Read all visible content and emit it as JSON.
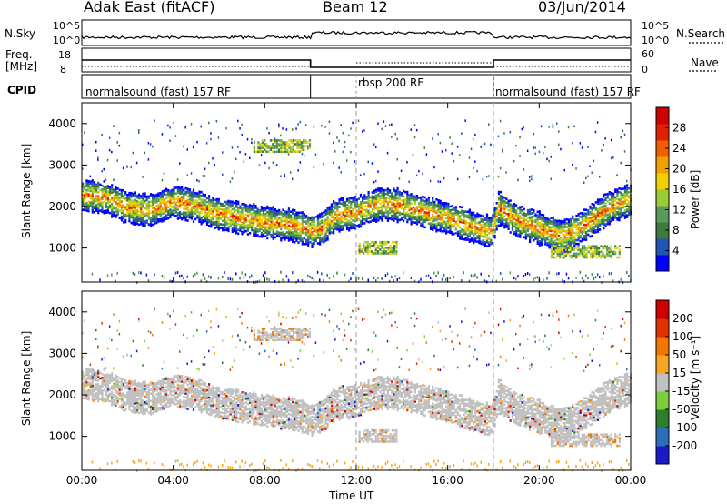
{
  "header": {
    "station": "Adak East (fitACF)",
    "beam": "Beam 12",
    "date": "03/Jun/2014"
  },
  "top_panels": {
    "nsky_label": "N.Sky",
    "nsky_ticks": [
      "10^5",
      "10^0"
    ],
    "nsearch_label": "N.Search",
    "freq_label_line1": "Freq.",
    "freq_label_line2": "[MHz]",
    "freq_ticks": [
      "18",
      "8"
    ],
    "nave_label": "Nave",
    "nave_ticks": [
      "60",
      "0"
    ],
    "cpid_label": "CPID",
    "cpid_segments": [
      "normalsound (fast) 157 RF",
      "rbsp 200 RF",
      "normalsound (fast) 157 RF"
    ]
  },
  "colors": {
    "power_scale": [
      "#0000ff",
      "#2155b8",
      "#3d7a3d",
      "#5a9a5a",
      "#9acd32",
      "#f2d000",
      "#f2a000",
      "#f06000",
      "#e02000",
      "#d00000"
    ],
    "velocity_scale": [
      "#1a1ac8",
      "#2c6fb8",
      "#2f7d2f",
      "#7ccf3a",
      "#c0c0c0",
      "#f5a623",
      "#f07800",
      "#e03000",
      "#d00000"
    ]
  },
  "chart_data": [
    {
      "type": "heatmap",
      "name": "power",
      "ylabel": "Slant Range [km]",
      "yticks": [
        "4000",
        "3000",
        "2000",
        "1000"
      ],
      "ylim": [
        180,
        4500
      ],
      "xlim": [
        "00:00",
        "24:00"
      ],
      "colorbar_label": "Power [dB]",
      "colorbar_ticks": [
        "28",
        "24",
        "20",
        "16",
        "12",
        "8",
        "4"
      ],
      "band_center_km": [
        [
          0,
          2300
        ],
        [
          1,
          2250
        ],
        [
          2,
          2000
        ],
        [
          3,
          1950
        ],
        [
          4,
          2150
        ],
        [
          5,
          2050
        ],
        [
          6,
          1850
        ],
        [
          7,
          1750
        ],
        [
          8,
          1650
        ],
        [
          9,
          1600
        ],
        [
          10,
          1450
        ],
        [
          10.5,
          1500
        ],
        [
          11,
          1800
        ],
        [
          12,
          1900
        ],
        [
          13,
          2100
        ],
        [
          14,
          2050
        ],
        [
          15,
          1900
        ],
        [
          16,
          1750
        ],
        [
          17,
          1550
        ],
        [
          17.9,
          1400
        ],
        [
          18.2,
          2000
        ],
        [
          19,
          1700
        ],
        [
          20,
          1500
        ],
        [
          21,
          1300
        ],
        [
          22,
          1600
        ],
        [
          23,
          2000
        ],
        [
          24,
          2200
        ]
      ],
      "patches_km": [
        [
          12.1,
          13.8,
          1050
        ],
        [
          20.5,
          23.5,
          950
        ],
        [
          7.5,
          10.0,
          3500
        ]
      ]
    },
    {
      "type": "heatmap",
      "name": "velocity",
      "ylabel": "Slant Range [km]",
      "yticks": [
        "4000",
        "3000",
        "2000",
        "1000"
      ],
      "ylim": [
        180,
        4500
      ],
      "xlim": [
        "00:00",
        "24:00"
      ],
      "xticks": [
        "00:00",
        "04:00",
        "08:00",
        "12:00",
        "16:00",
        "20:00",
        "00:00"
      ],
      "xlabel": "Time UT",
      "colorbar_label": "Velocity [m s⁻¹]",
      "colorbar_ticks": [
        "200",
        "100",
        "50",
        "15",
        "-15",
        "-50",
        "-100",
        "-200"
      ]
    }
  ]
}
